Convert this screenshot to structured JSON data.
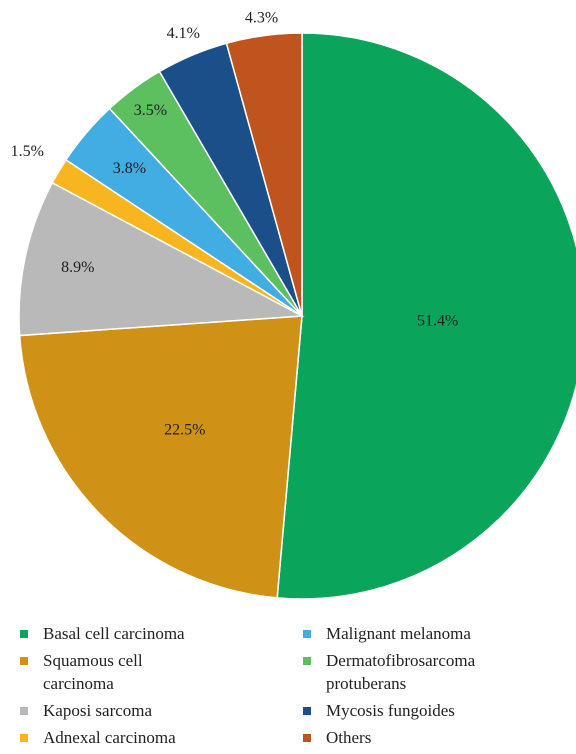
{
  "chart_data": {
    "type": "pie",
    "categories": [
      "Basal cell carcinoma",
      "Squamous cell carcinoma",
      "Kaposi sarcoma",
      "Adnexal carcinoma",
      "Malignant melanoma",
      "Dermatofibrosarcoma protuberans",
      "Mycosis fungoides",
      "Others"
    ],
    "values": [
      51.4,
      22.5,
      8.9,
      1.5,
      3.8,
      3.5,
      4.1,
      4.3
    ],
    "value_labels": [
      "51.4%",
      "22.5%",
      "8.9%",
      "1.5%",
      "3.8%",
      "3.5%",
      "4.1%",
      "4.3%"
    ],
    "colors": [
      "#0aa55a",
      "#d09216",
      "#b9b9b9",
      "#f7b51f",
      "#41ade2",
      "#5cbf60",
      "#1b4f8a",
      "#c0541e"
    ],
    "legend": "bottom"
  }
}
